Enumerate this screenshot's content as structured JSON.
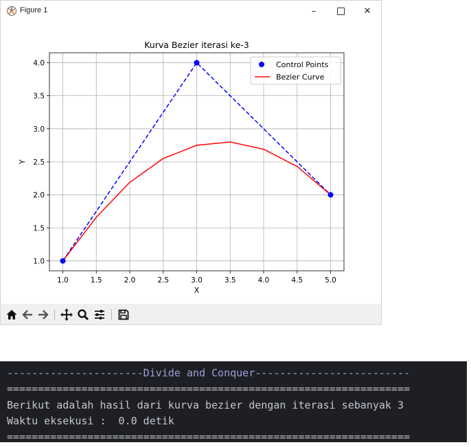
{
  "window": {
    "title": "Figure 1",
    "controls": {
      "minimize": "–",
      "maximize": "",
      "close": "✕"
    }
  },
  "toolbar": {
    "buttons": [
      "home-icon",
      "back-arrow-icon",
      "forward-arrow-icon",
      "pan-icon",
      "zoom-icon",
      "configure-subplots-icon",
      "save-icon"
    ]
  },
  "chart_data": {
    "type": "line",
    "title": "Kurva Bezier iterasi ke-3",
    "xlabel": "X",
    "ylabel": "Y",
    "xlim": [
      0.8,
      5.2
    ],
    "ylim": [
      0.85,
      4.15
    ],
    "xticks": [
      1.0,
      1.5,
      2.0,
      2.5,
      3.0,
      3.5,
      4.0,
      4.5,
      5.0
    ],
    "xtick_labels": [
      "1.0",
      "1.5",
      "2.0",
      "2.5",
      "3.0",
      "3.5",
      "4.0",
      "4.5",
      "5.0"
    ],
    "yticks": [
      1.0,
      1.5,
      2.0,
      2.5,
      3.0,
      3.5,
      4.0
    ],
    "ytick_labels": [
      "1.0",
      "1.5",
      "2.0",
      "2.5",
      "3.0",
      "3.5",
      "4.0"
    ],
    "grid": true,
    "legend_position": "top-right",
    "series": [
      {
        "name": "Control Points",
        "kind": "scatter-with-dashed-line",
        "color": "#0000ff",
        "x": [
          1.0,
          3.0,
          5.0
        ],
        "y": [
          1.0,
          4.0,
          2.0
        ]
      },
      {
        "name": "Bezier Curve",
        "kind": "line",
        "color": "#ff0000",
        "x": [
          1.0,
          1.5,
          2.0,
          2.5,
          3.0,
          3.5,
          4.0,
          4.5,
          5.0
        ],
        "y": [
          1.0,
          1.66,
          2.19,
          2.55,
          2.75,
          2.8,
          2.69,
          2.43,
          2.0
        ]
      }
    ]
  },
  "terminal": {
    "lines": [
      {
        "text": "----------------------Divide and Conquer-------------------------",
        "color": "#9aa2d8"
      },
      {
        "text": "=================================================================",
        "color": "#c6c8cf"
      },
      {
        "text": "Berikut adalah hasil dari kurva bezier dengan iterasi sebanyak 3",
        "color": "#c6c8cf"
      },
      {
        "text": "Waktu eksekusi :  0.0 detik",
        "color": "#c6c8cf"
      },
      {
        "text": "=================================================================",
        "color": "#c6c8cf"
      }
    ]
  }
}
